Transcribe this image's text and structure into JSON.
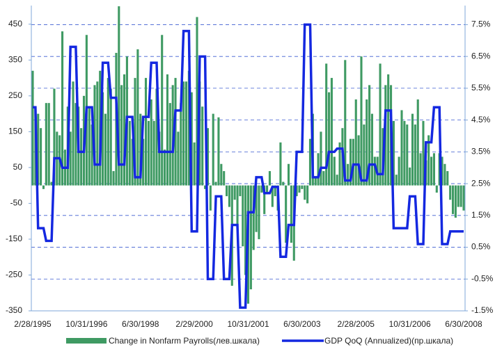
{
  "chart_data": {
    "type": "bar_line",
    "categories": [
      "2/28/1995",
      null,
      null,
      null,
      null,
      null,
      null,
      null,
      null,
      null,
      null,
      null,
      null,
      null,
      null,
      null,
      null,
      null,
      null,
      null,
      "10/31/1996",
      null,
      null,
      null,
      null,
      null,
      null,
      null,
      null,
      null,
      null,
      null,
      null,
      null,
      null,
      null,
      null,
      null,
      null,
      null,
      "6/30/1998",
      null,
      null,
      null,
      null,
      null,
      null,
      null,
      null,
      null,
      null,
      null,
      null,
      null,
      null,
      null,
      null,
      null,
      null,
      null,
      "2/29/2000",
      null,
      null,
      null,
      null,
      null,
      null,
      null,
      null,
      null,
      null,
      null,
      null,
      null,
      null,
      null,
      null,
      null,
      null,
      null,
      "10/31/2001",
      null,
      null,
      null,
      null,
      null,
      null,
      null,
      null,
      null,
      null,
      null,
      null,
      null,
      null,
      null,
      null,
      null,
      null,
      null,
      "6/30/2003",
      null,
      null,
      null,
      null,
      null,
      null,
      null,
      null,
      null,
      null,
      null,
      null,
      null,
      null,
      null,
      null,
      null,
      null,
      null,
      "2/28/2005",
      null,
      null,
      null,
      null,
      null,
      null,
      null,
      null,
      null,
      null,
      null,
      null,
      null,
      null,
      null,
      null,
      null,
      null,
      null,
      "10/31/2006",
      null,
      null,
      null,
      null,
      null,
      null,
      null,
      null,
      null,
      null,
      null,
      null,
      null,
      null,
      null,
      null,
      null,
      null,
      null,
      "6/30/2008"
    ],
    "series": [
      {
        "name": "Change in Nonfarm Payrolls(лев.шкала)",
        "type": "bar",
        "color": "#3f9a63",
        "values": [
          320,
          220,
          200,
          160,
          -10,
          230,
          230,
          10,
          270,
          150,
          140,
          430,
          100,
          220,
          150,
          290,
          230,
          220,
          160,
          250,
          420,
          220,
          170,
          280,
          290,
          320,
          260,
          200,
          300,
          270,
          40,
          370,
          500,
          280,
          310,
          360,
          180,
          130,
          300,
          380,
          200,
          130,
          300,
          180,
          240,
          180,
          270,
          150,
          420,
          100,
          310,
          230,
          280,
          300,
          150,
          230,
          290,
          290,
          320,
          260,
          120,
          470,
          290,
          220,
          -10,
          160,
          -70,
          200,
          10,
          190,
          60,
          40,
          -30,
          -60,
          -280,
          -40,
          -120,
          -30,
          -170,
          -250,
          -330,
          -290,
          -180,
          -130,
          -150,
          -20,
          -80,
          -20,
          40,
          -60,
          -30,
          -70,
          120,
          10,
          -160,
          60,
          -160,
          -210,
          -30,
          -20,
          -10,
          -40,
          -50,
          130,
          200,
          20,
          90,
          150,
          40,
          340,
          260,
          300,
          80,
          30,
          120,
          160,
          350,
          60,
          130,
          130,
          240,
          140,
          360,
          170,
          240,
          280,
          200,
          80,
          80,
          340,
          160,
          280,
          310,
          280,
          180,
          30,
          80,
          210,
          180,
          170,
          50,
          200,
          170,
          240,
          90,
          180,
          70,
          140,
          80,
          90,
          -20,
          90,
          80,
          60,
          40,
          -40,
          -80,
          -90,
          -60,
          -60,
          -70
        ]
      },
      {
        "name": "GDP QoQ (Annualized)(пр.шкала)",
        "type": "line",
        "axis": "y2",
        "color": "#1428e0",
        "values": [
          4.9,
          4.9,
          1.1,
          1.1,
          1.1,
          0.7,
          0.7,
          0.7,
          3.3,
          3.3,
          3.3,
          3.0,
          3.0,
          3.0,
          6.8,
          6.8,
          6.8,
          3.5,
          3.5,
          3.5,
          4.9,
          4.9,
          4.9,
          3.1,
          3.1,
          3.1,
          6.3,
          6.3,
          6.3,
          5.2,
          5.2,
          5.2,
          3.1,
          3.1,
          3.1,
          4.6,
          4.6,
          4.6,
          2.7,
          2.7,
          2.7,
          4.6,
          4.6,
          4.6,
          6.3,
          6.3,
          6.3,
          3.5,
          3.5,
          3.5,
          3.5,
          3.5,
          3.5,
          4.8,
          4.8,
          4.8,
          7.3,
          7.3,
          7.3,
          1.0,
          1.0,
          1.0,
          6.5,
          6.5,
          6.5,
          -0.5,
          -0.5,
          -0.5,
          2.1,
          2.1,
          2.1,
          -0.5,
          -0.5,
          -0.5,
          1.2,
          1.2,
          1.2,
          -1.4,
          -1.4,
          -1.4,
          1.6,
          1.6,
          1.6,
          2.7,
          2.7,
          2.7,
          2.2,
          2.2,
          2.2,
          2.4,
          2.4,
          2.4,
          0.2,
          0.2,
          0.2,
          1.2,
          1.2,
          1.2,
          3.5,
          3.5,
          3.5,
          7.5,
          7.5,
          7.5,
          2.7,
          2.7,
          2.7,
          3.0,
          3.0,
          3.0,
          3.5,
          3.5,
          3.5,
          3.6,
          3.6,
          3.6,
          2.6,
          2.6,
          2.6,
          3.1,
          3.1,
          3.1,
          2.6,
          2.6,
          2.6,
          3.1,
          3.1,
          3.1,
          2.8,
          2.8,
          2.8,
          4.8,
          4.8,
          4.8,
          1.1,
          1.1,
          1.1,
          1.1,
          1.1,
          1.1,
          2.1,
          2.1,
          2.1,
          0.6,
          0.6,
          0.6,
          3.8,
          3.8,
          3.8,
          4.9,
          4.9,
          4.9,
          0.6,
          0.6,
          0.6,
          1.0,
          1.0,
          1.0,
          1.0,
          1.0,
          1.0
        ]
      }
    ],
    "ylim": [
      -350,
      502
    ],
    "yticks": [
      -350,
      -250,
      -150,
      -50,
      50,
      150,
      250,
      350,
      450
    ],
    "y2lim": [
      -1.5,
      8.1
    ],
    "y2ticks": [
      {
        "value": -1.5,
        "label": "-1.5%"
      },
      {
        "value": -0.5,
        "label": "-0.5%"
      },
      {
        "value": 0.5,
        "label": "0.5%"
      },
      {
        "value": 1.5,
        "label": "1.5%"
      },
      {
        "value": 2.5,
        "label": "2.5%"
      },
      {
        "value": 3.5,
        "label": "3.5%"
      },
      {
        "value": 4.5,
        "label": "4.5%"
      },
      {
        "value": 5.5,
        "label": "5.5%"
      },
      {
        "value": 6.5,
        "label": "6.5%"
      },
      {
        "value": 7.5,
        "label": "7.5%"
      }
    ],
    "grid": true,
    "legend": "bottom"
  }
}
